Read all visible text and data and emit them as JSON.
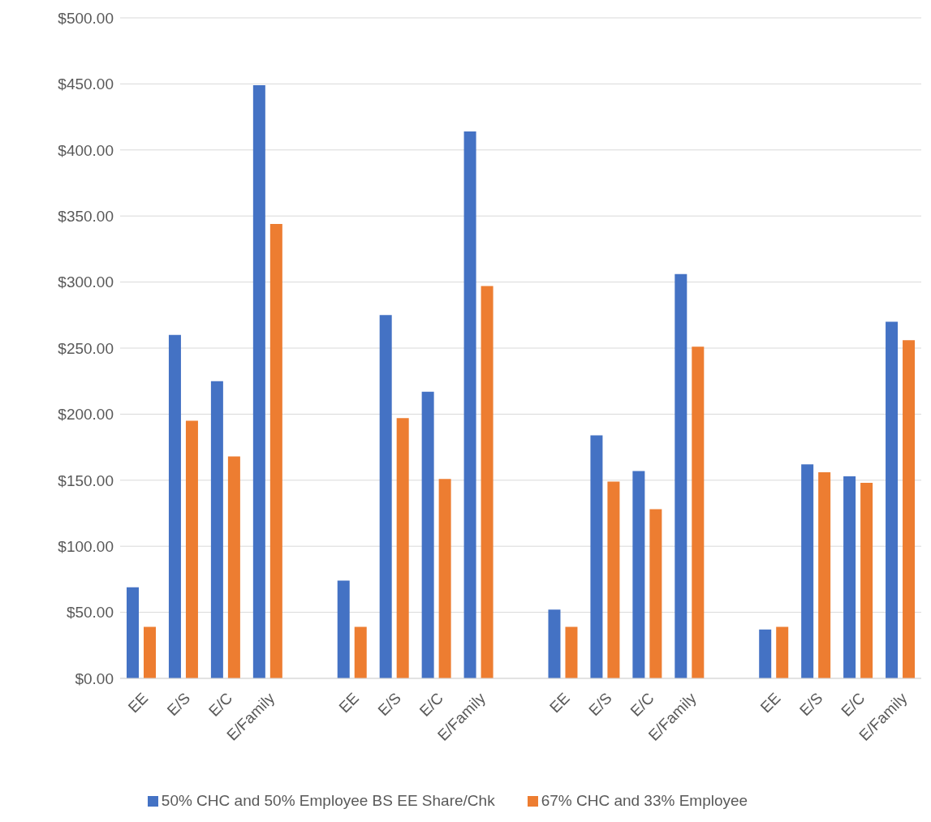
{
  "chart_data": {
    "type": "bar",
    "categories": [
      "EE",
      "E/S",
      "E/C",
      "E/Family",
      null,
      "EE",
      "E/S",
      "E/C",
      "E/Family",
      null,
      "EE",
      "E/S",
      "E/C",
      "E/Family",
      null,
      "EE",
      "E/S",
      "E/C",
      "E/Family"
    ],
    "series": [
      {
        "name": "50% CHC and 50% Employee BS EE Share/Chk",
        "color": "#4472c4",
        "values": [
          69,
          260,
          225,
          449,
          null,
          74,
          275,
          217,
          414,
          null,
          52,
          184,
          157,
          306,
          null,
          37,
          162,
          153,
          270
        ]
      },
      {
        "name": "67% CHC and 33% Employee",
        "color": "#ed7d31",
        "values": [
          39,
          195,
          168,
          344,
          null,
          39,
          197,
          151,
          297,
          null,
          39,
          149,
          128,
          251,
          null,
          39,
          156,
          148,
          256
        ]
      }
    ],
    "ylim": [
      0,
      500
    ],
    "yticks": [
      {
        "value": 0,
        "label": "$0.00"
      },
      {
        "value": 50,
        "label": "$50.00"
      },
      {
        "value": 100,
        "label": "$100.00"
      },
      {
        "value": 150,
        "label": "$150.00"
      },
      {
        "value": 200,
        "label": "$200.00"
      },
      {
        "value": 250,
        "label": "$250.00"
      },
      {
        "value": 300,
        "label": "$300.00"
      },
      {
        "value": 350,
        "label": "$350.00"
      },
      {
        "value": 400,
        "label": "$400.00"
      },
      {
        "value": 450,
        "label": "$450.00"
      },
      {
        "value": 500,
        "label": "$500.00"
      }
    ],
    "grid": "y",
    "legend": "bottom"
  }
}
